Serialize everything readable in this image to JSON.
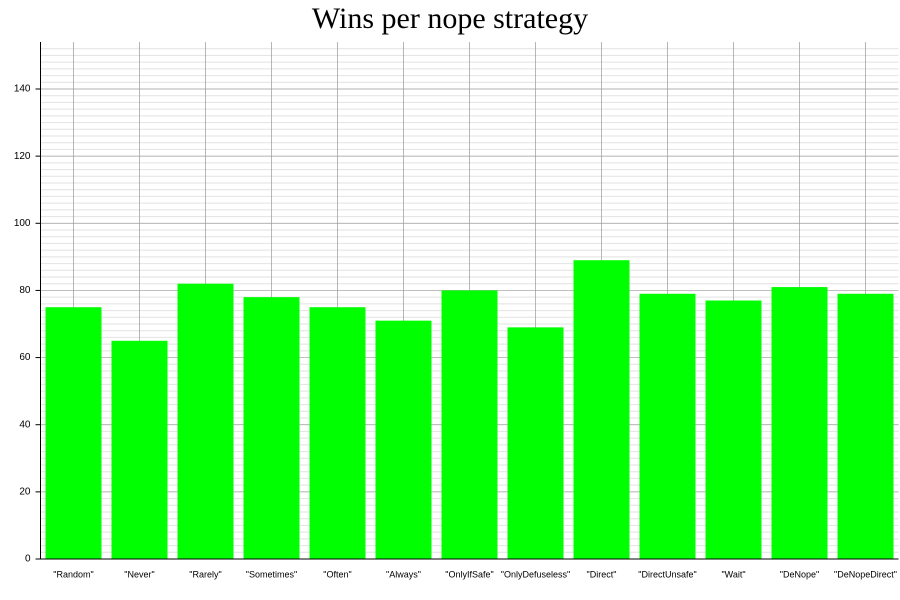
{
  "chart_data": {
    "type": "bar",
    "title": "Wins per nope strategy",
    "categories": [
      "\"Random\"",
      "\"Never\"",
      "\"Rarely\"",
      "\"Sometimes\"",
      "\"Often\"",
      "\"Always\"",
      "\"OnlyIfSafe\"",
      "\"OnlyDefuseless\"",
      "\"Direct\"",
      "\"DirectUnsafe\"",
      "\"Wait\"",
      "\"DeNope\"",
      "\"DeNopeDirect\""
    ],
    "values": [
      75,
      65,
      82,
      78,
      75,
      71,
      80,
      69,
      89,
      79,
      77,
      81,
      79
    ],
    "color": "#00ff00",
    "ylim": [
      0,
      154
    ],
    "yticks": [
      0,
      20,
      40,
      60,
      80,
      100,
      120,
      140
    ],
    "grid": true,
    "minor_grid": true
  }
}
